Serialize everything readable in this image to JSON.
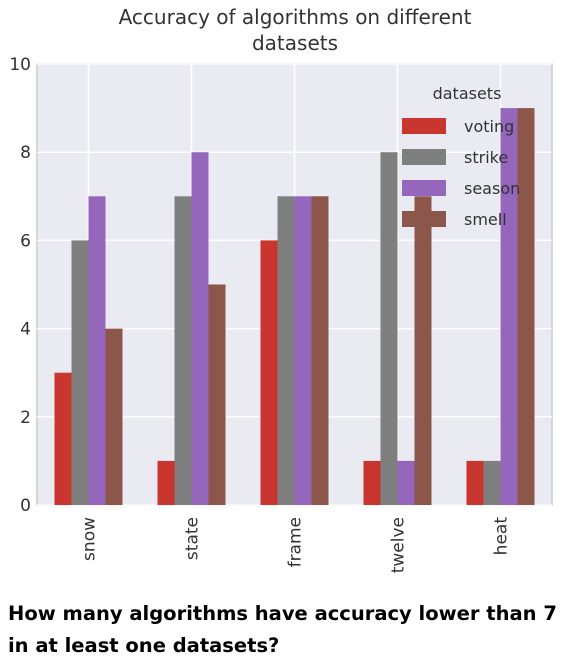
{
  "chart_data": {
    "type": "bar",
    "title_lines": [
      "Accuracy of algorithms on different",
      "datasets"
    ],
    "categories": [
      "snow",
      "state",
      "frame",
      "twelve",
      "heat"
    ],
    "series": [
      {
        "name": "voting",
        "values": [
          3,
          1,
          6,
          1,
          1
        ],
        "color": "#c9362f"
      },
      {
        "name": "strike",
        "values": [
          6,
          7,
          7,
          8,
          1
        ],
        "color": "#7f7f7f"
      },
      {
        "name": "season",
        "values": [
          7,
          8,
          7,
          1,
          9
        ],
        "color": "#9467bd"
      },
      {
        "name": "smell",
        "values": [
          4,
          5,
          7,
          7,
          9
        ],
        "color": "#8c564b"
      }
    ],
    "ylim": [
      0,
      10
    ],
    "yticks": [
      "0",
      "2",
      "4",
      "6",
      "8",
      "10"
    ],
    "legend_title": "datasets",
    "legend_position": "top-right",
    "grid": true,
    "background": "#eaeaf2"
  },
  "question": "How many algorithms have accuracy lower than 7 in at least one datasets?"
}
